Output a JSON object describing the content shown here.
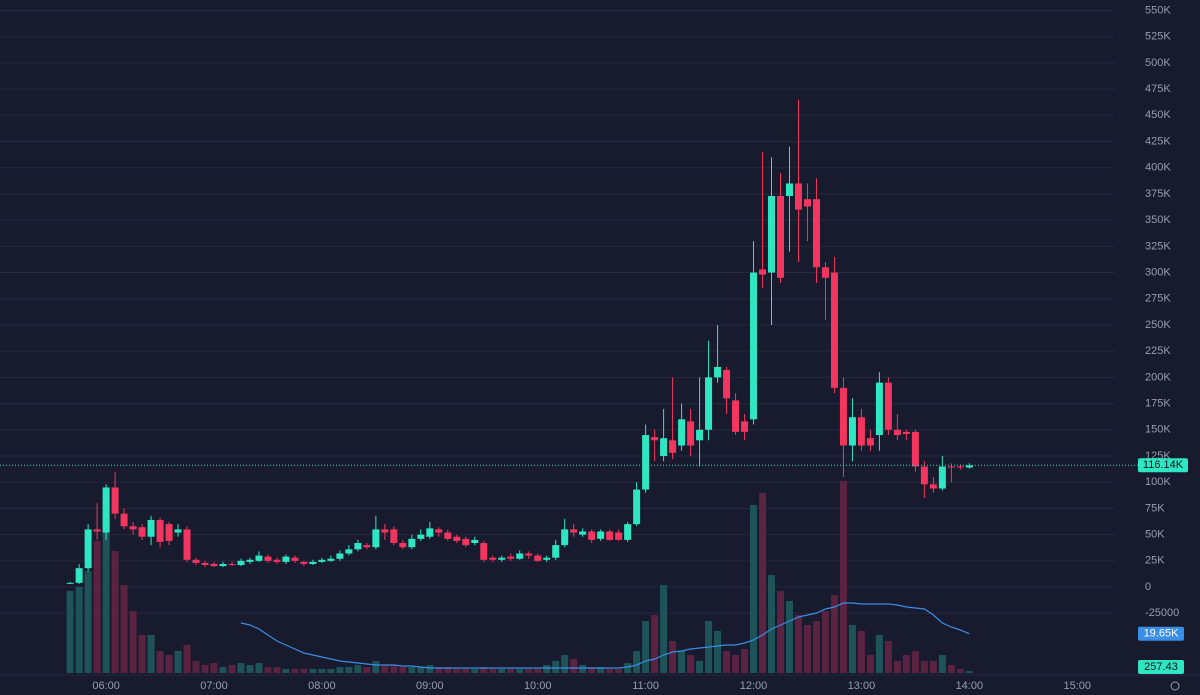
{
  "chart_data": {
    "type": "candlestick",
    "x": [
      "05:40",
      "05:45",
      "05:50",
      "05:55",
      "06:00",
      "06:05",
      "06:10",
      "06:15",
      "06:20",
      "06:25",
      "06:30",
      "06:35",
      "06:40",
      "06:45",
      "06:50",
      "06:55",
      "07:00",
      "07:05",
      "07:10",
      "07:15",
      "07:20",
      "07:25",
      "07:30",
      "07:35",
      "07:40",
      "07:45",
      "07:50",
      "07:55",
      "08:00",
      "08:05",
      "08:10",
      "08:15",
      "08:20",
      "08:25",
      "08:30",
      "08:35",
      "08:40",
      "08:45",
      "08:50",
      "08:55",
      "09:00",
      "09:05",
      "09:10",
      "09:15",
      "09:20",
      "09:25",
      "09:30",
      "09:35",
      "09:40",
      "09:45",
      "09:50",
      "09:55",
      "10:00",
      "10:05",
      "10:10",
      "10:15",
      "10:20",
      "10:25",
      "10:30",
      "10:35",
      "10:40",
      "10:45",
      "10:50",
      "10:55",
      "11:00",
      "11:05",
      "11:10",
      "11:15",
      "11:20",
      "11:25",
      "11:30",
      "11:35",
      "11:40",
      "11:45",
      "11:50",
      "11:55",
      "12:00",
      "12:05",
      "12:10",
      "12:15",
      "12:20",
      "12:25",
      "12:30",
      "12:35",
      "12:40",
      "12:45",
      "12:50",
      "12:55",
      "13:00",
      "13:05",
      "13:10",
      "13:15",
      "13:20",
      "13:25",
      "13:30",
      "13:35",
      "13:40",
      "13:45",
      "13:50",
      "13:55",
      "14:00"
    ],
    "open": [
      4,
      4,
      18,
      55,
      52,
      95,
      70,
      58,
      57,
      48,
      64,
      60,
      52,
      55,
      26,
      23,
      22,
      20,
      22,
      21,
      24,
      25,
      29,
      26,
      24,
      28,
      24,
      22,
      24,
      25,
      27,
      32,
      36,
      40,
      38,
      55,
      55,
      42,
      38,
      46,
      48,
      55,
      52,
      48,
      46,
      42,
      42,
      28,
      26,
      29,
      27,
      32,
      30,
      26,
      28,
      40,
      55,
      50,
      53,
      46,
      53,
      52,
      45,
      60,
      93,
      143,
      125,
      140,
      135,
      158,
      140,
      150,
      200,
      207,
      178,
      158,
      160,
      303,
      300,
      373,
      373,
      385,
      370,
      370,
      305,
      300,
      190,
      135,
      162,
      142,
      145,
      195,
      150,
      148,
      148,
      115,
      98,
      94,
      115,
      115,
      114
    ],
    "high": [
      5,
      22,
      60,
      80,
      98,
      110,
      75,
      62,
      60,
      68,
      66,
      62,
      60,
      58,
      28,
      25,
      24,
      24,
      24,
      27,
      28,
      34,
      31,
      28,
      31,
      30,
      25,
      26,
      28,
      30,
      35,
      40,
      45,
      42,
      68,
      60,
      58,
      45,
      50,
      55,
      62,
      57,
      55,
      50,
      48,
      48,
      44,
      30,
      30,
      32,
      35,
      34,
      32,
      30,
      45,
      65,
      60,
      56,
      55,
      55,
      55,
      55,
      62,
      100,
      155,
      150,
      170,
      200,
      175,
      170,
      200,
      235,
      250,
      210,
      185,
      165,
      330,
      415,
      410,
      395,
      420,
      465,
      385,
      390,
      310,
      315,
      200,
      180,
      170,
      150,
      205,
      200,
      165,
      150,
      150,
      120,
      105,
      125,
      118,
      117,
      118
    ],
    "low": [
      3,
      3,
      15,
      45,
      45,
      65,
      55,
      50,
      45,
      40,
      38,
      40,
      48,
      24,
      21,
      19,
      19,
      19,
      20,
      20,
      22,
      24,
      23,
      22,
      22,
      23,
      20,
      21,
      23,
      24,
      25,
      30,
      34,
      36,
      36,
      45,
      40,
      36,
      36,
      44,
      46,
      48,
      44,
      42,
      38,
      40,
      24,
      24,
      24,
      25,
      26,
      27,
      24,
      24,
      26,
      38,
      48,
      48,
      42,
      44,
      44,
      44,
      43,
      58,
      90,
      120,
      120,
      122,
      130,
      125,
      115,
      140,
      195,
      165,
      145,
      140,
      155,
      285,
      250,
      290,
      320,
      310,
      330,
      290,
      255,
      185,
      105,
      120,
      130,
      130,
      130,
      145,
      140,
      140,
      110,
      85,
      90,
      92,
      100,
      112,
      113
    ],
    "close": [
      4,
      18,
      55,
      53,
      95,
      70,
      58,
      55,
      48,
      64,
      43,
      44,
      55,
      26,
      23,
      21,
      20,
      22,
      21,
      25,
      26,
      30,
      25,
      24,
      29,
      25,
      22,
      24,
      26,
      27,
      32,
      36,
      42,
      38,
      55,
      52,
      42,
      38,
      46,
      50,
      56,
      52,
      46,
      44,
      40,
      45,
      26,
      26,
      28,
      27,
      32,
      30,
      25,
      28,
      40,
      55,
      52,
      53,
      45,
      53,
      45,
      45,
      60,
      93,
      145,
      140,
      142,
      128,
      160,
      135,
      150,
      200,
      210,
      180,
      148,
      148,
      300,
      298,
      373,
      295,
      385,
      360,
      363,
      305,
      295,
      190,
      135,
      162,
      135,
      135,
      195,
      150,
      145,
      146,
      115,
      98,
      94,
      115,
      114,
      114,
      116.14
    ],
    "volume": [
      41,
      43,
      51,
      66,
      90,
      61,
      44,
      31,
      19,
      19,
      11,
      9,
      11,
      14,
      6,
      4,
      5,
      3,
      4,
      5,
      4,
      5,
      3,
      3,
      2,
      2,
      2,
      2,
      2,
      2,
      3,
      3,
      4,
      3,
      6,
      4,
      4,
      3,
      3,
      3,
      4,
      3,
      3,
      2,
      2,
      2,
      3,
      2,
      2,
      2,
      2,
      2,
      2,
      4,
      6,
      9,
      7,
      4,
      3,
      3,
      2,
      2,
      5,
      11,
      26,
      29,
      44,
      16,
      11,
      9,
      6,
      26,
      21,
      11,
      9,
      12,
      84,
      90,
      49,
      41,
      36,
      29,
      24,
      26,
      31,
      39,
      96,
      24,
      21,
      9,
      19,
      16,
      6,
      9,
      11,
      6,
      6,
      9,
      4,
      2,
      1
    ],
    "volume_ma": [
      null,
      null,
      null,
      null,
      null,
      null,
      null,
      null,
      null,
      null,
      null,
      null,
      null,
      null,
      null,
      null,
      null,
      null,
      null,
      25,
      24,
      22,
      19,
      16,
      14,
      12,
      10,
      9,
      8,
      7,
      6,
      5.5,
      5,
      4.5,
      4,
      4,
      4,
      3.5,
      3.5,
      3,
      2.5,
      2.5,
      2.5,
      2.5,
      2.5,
      2.5,
      2.5,
      2.5,
      2.5,
      2.5,
      2.5,
      2.5,
      2.5,
      2.5,
      2.5,
      2.5,
      2.5,
      2.5,
      2.5,
      2.5,
      2.5,
      2.5,
      3,
      4,
      6,
      7,
      9,
      10.5,
      11,
      12,
      12.5,
      13,
      13.5,
      14,
      14,
      15,
      16.5,
      19,
      22,
      24,
      26,
      28,
      29,
      30,
      32,
      33,
      35,
      35,
      34.5,
      34.5,
      34.5,
      34.5,
      34,
      33,
      32.5,
      32,
      29,
      25,
      23,
      21.5,
      19.65
    ],
    "up_color": "#2ee6c2",
    "down_color": "#f2365f",
    "volume_up_color": "#1e5457",
    "volume_down_color": "#5a2341",
    "ma_color": "#3a8ee6",
    "last_price_label": "116.14K",
    "volume_ma_label": "19.65K",
    "indicator_label": "257.43",
    "xlim": [
      "05:01",
      "15:21"
    ],
    "xticks": [
      "06:00",
      "07:00",
      "08:00",
      "09:00",
      "10:00",
      "11:00",
      "12:00",
      "13:00",
      "14:00",
      "15:00"
    ],
    "ylim": [
      -82,
      560
    ],
    "yticks": [
      {
        "value": 550,
        "label": "550K"
      },
      {
        "value": 525,
        "label": "525K"
      },
      {
        "value": 500,
        "label": "500K"
      },
      {
        "value": 475,
        "label": "475K"
      },
      {
        "value": 450,
        "label": "450K"
      },
      {
        "value": 425,
        "label": "425K"
      },
      {
        "value": 400,
        "label": "400K"
      },
      {
        "value": 375,
        "label": "375K"
      },
      {
        "value": 350,
        "label": "350K"
      },
      {
        "value": 325,
        "label": "325K"
      },
      {
        "value": 300,
        "label": "300K"
      },
      {
        "value": 275,
        "label": "275K"
      },
      {
        "value": 250,
        "label": "250K"
      },
      {
        "value": 225,
        "label": "225K"
      },
      {
        "value": 200,
        "label": "200K"
      },
      {
        "value": 175,
        "label": "175K"
      },
      {
        "value": 150,
        "label": "150K"
      },
      {
        "value": 125,
        "label": "125K"
      },
      {
        "value": 100,
        "label": "100K"
      },
      {
        "value": 75,
        "label": "75K"
      },
      {
        "value": 50,
        "label": "50K"
      },
      {
        "value": 25,
        "label": "25K"
      },
      0,
      {
        "value": -25,
        "label": "-25000"
      }
    ],
    "y2lim": [
      0,
      100
    ],
    "grid": true
  }
}
